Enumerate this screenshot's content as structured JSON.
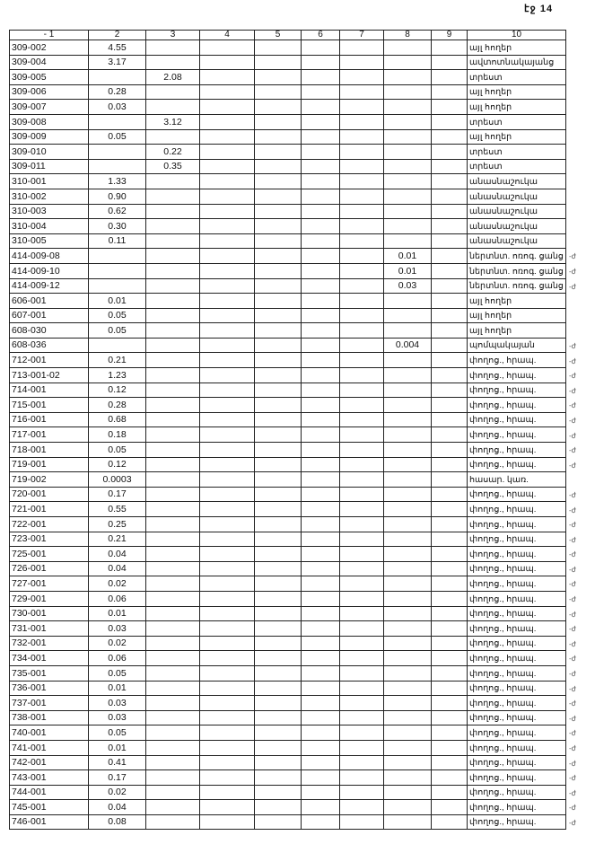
{
  "page_label": "էջ 14",
  "columns": [
    "-   1",
    "2",
    "3",
    "4",
    "5",
    "6",
    "7",
    "8",
    "9",
    "10"
  ],
  "rows": [
    {
      "c": [
        "309-002",
        "4.55",
        "",
        "",
        "",
        "",
        "",
        "",
        "",
        "այլ հողեր"
      ],
      "m": ""
    },
    {
      "c": [
        "309-004",
        "3.17",
        "",
        "",
        "",
        "",
        "",
        "",
        "",
        "ավտոտնակայանց"
      ],
      "m": ""
    },
    {
      "c": [
        "309-005",
        "",
        "2.08",
        "",
        "",
        "",
        "",
        "",
        "",
        "տրեստ"
      ],
      "m": ""
    },
    {
      "c": [
        "309-006",
        "0.28",
        "",
        "",
        "",
        "",
        "",
        "",
        "",
        "այլ հողեր"
      ],
      "m": ""
    },
    {
      "c": [
        "309-007",
        "0.03",
        "",
        "",
        "",
        "",
        "",
        "",
        "",
        "այլ հողեր"
      ],
      "m": ""
    },
    {
      "c": [
        "309-008",
        "",
        "3.12",
        "",
        "",
        "",
        "",
        "",
        "",
        "տրեստ"
      ],
      "m": ""
    },
    {
      "c": [
        "309-009",
        "0.05",
        "",
        "",
        "",
        "",
        "",
        "",
        "",
        "այլ հողեր"
      ],
      "m": ""
    },
    {
      "c": [
        "309-010",
        "",
        "0.22",
        "",
        "",
        "",
        "",
        "",
        "",
        "տրեստ"
      ],
      "m": ""
    },
    {
      "c": [
        "309-011",
        "",
        "0.35",
        "",
        "",
        "",
        "",
        "",
        "",
        "տրեստ"
      ],
      "m": ""
    },
    {
      "c": [
        "310-001",
        "1.33",
        "",
        "",
        "",
        "",
        "",
        "",
        "",
        "անասնաշուկա"
      ],
      "m": ""
    },
    {
      "c": [
        "310-002",
        "0.90",
        "",
        "",
        "",
        "",
        "",
        "",
        "",
        "անասնաշուկա"
      ],
      "m": ""
    },
    {
      "c": [
        "310-003",
        "0.62",
        "",
        "",
        "",
        "",
        "",
        "",
        "",
        "անասնաշուկա"
      ],
      "m": ""
    },
    {
      "c": [
        "310-004",
        "0.30",
        "",
        "",
        "",
        "",
        "",
        "",
        "",
        "անասնաշուկա"
      ],
      "m": ""
    },
    {
      "c": [
        "310-005",
        "0.11",
        "",
        "",
        "",
        "",
        "",
        "",
        "",
        "անասնաշուկա"
      ],
      "m": ""
    },
    {
      "c": [
        "414-009-08",
        "",
        "",
        "",
        "",
        "",
        "",
        "0.01",
        "",
        "ներտնտ. ոռոգ. ցանց"
      ],
      "m": "-ժ"
    },
    {
      "c": [
        "414-009-10",
        "",
        "",
        "",
        "",
        "",
        "",
        "0.01",
        "",
        "ներտնտ. ոռոգ. ցանց"
      ],
      "m": "-ժ"
    },
    {
      "c": [
        "414-009-12",
        "",
        "",
        "",
        "",
        "",
        "",
        "0.03",
        "",
        "ներտնտ. ոռոգ. ցանց"
      ],
      "m": "-ժ"
    },
    {
      "c": [
        "606-001",
        "0.01",
        "",
        "",
        "",
        "",
        "",
        "",
        "",
        "այլ հողեր"
      ],
      "m": ""
    },
    {
      "c": [
        "607-001",
        "0.05",
        "",
        "",
        "",
        "",
        "",
        "",
        "",
        "այլ հողեր"
      ],
      "m": ""
    },
    {
      "c": [
        "608-030",
        "0.05",
        "",
        "",
        "",
        "",
        "",
        "",
        "",
        "այլ հողեր"
      ],
      "m": ""
    },
    {
      "c": [
        "608-036",
        "",
        "",
        "",
        "",
        "",
        "",
        "0.004",
        "",
        "պոմպակայան"
      ],
      "m": "-ժ"
    },
    {
      "c": [
        "712-001",
        "0.21",
        "",
        "",
        "",
        "",
        "",
        "",
        "",
        "փողոց., հրապ."
      ],
      "m": "-ժ"
    },
    {
      "c": [
        "713-001-02",
        "1.23",
        "",
        "",
        "",
        "",
        "",
        "",
        "",
        "փողոց., հրապ."
      ],
      "m": "-ժ"
    },
    {
      "c": [
        "714-001",
        "0.12",
        "",
        "",
        "",
        "",
        "",
        "",
        "",
        "փողոց., հրապ."
      ],
      "m": "-ժ"
    },
    {
      "c": [
        "715-001",
        "0.28",
        "",
        "",
        "",
        "",
        "",
        "",
        "",
        "փողոց., հրապ."
      ],
      "m": "-ժ"
    },
    {
      "c": [
        "716-001",
        "0.68",
        "",
        "",
        "",
        "",
        "",
        "",
        "",
        "փողոց., հրապ."
      ],
      "m": "-ժ"
    },
    {
      "c": [
        "717-001",
        "0.18",
        "",
        "",
        "",
        "",
        "",
        "",
        "",
        "փողոց., հրապ."
      ],
      "m": "-ժ"
    },
    {
      "c": [
        "718-001",
        "0.05",
        "",
        "",
        "",
        "",
        "",
        "",
        "",
        "փողոց., հրապ."
      ],
      "m": "-ժ"
    },
    {
      "c": [
        "719-001",
        "0.12",
        "",
        "",
        "",
        "",
        "",
        "",
        "",
        "փողոց., հրապ."
      ],
      "m": "-ժ"
    },
    {
      "c": [
        "719-002",
        "0.0003",
        "",
        "",
        "",
        "",
        "",
        "",
        "",
        "հասար. կառ."
      ],
      "m": ""
    },
    {
      "c": [
        "720-001",
        "0.17",
        "",
        "",
        "",
        "",
        "",
        "",
        "",
        "փողոց., հրապ."
      ],
      "m": "-ժ"
    },
    {
      "c": [
        "721-001",
        "0.55",
        "",
        "",
        "",
        "",
        "",
        "",
        "",
        "փողոց., հրապ."
      ],
      "m": "-ժ"
    },
    {
      "c": [
        "722-001",
        "0.25",
        "",
        "",
        "",
        "",
        "",
        "",
        "",
        "փողոց., հրապ."
      ],
      "m": "-ժ"
    },
    {
      "c": [
        "723-001",
        "0.21",
        "",
        "",
        "",
        "",
        "",
        "",
        "",
        "փողոց., հրապ."
      ],
      "m": "-ժ"
    },
    {
      "c": [
        "725-001",
        "0.04",
        "",
        "",
        "",
        "",
        "",
        "",
        "",
        "փողոց., հրապ."
      ],
      "m": "-ժ"
    },
    {
      "c": [
        "726-001",
        "0.04",
        "",
        "",
        "",
        "",
        "",
        "",
        "",
        "փողոց., հրապ."
      ],
      "m": "-ժ"
    },
    {
      "c": [
        "727-001",
        "0.02",
        "",
        "",
        "",
        "",
        "",
        "",
        "",
        "փողոց., հրապ."
      ],
      "m": "-ժ"
    },
    {
      "c": [
        "729-001",
        "0.06",
        "",
        "",
        "",
        "",
        "",
        "",
        "",
        "փողոց., հրապ."
      ],
      "m": "-ժ"
    },
    {
      "c": [
        "730-001",
        "0.01",
        "",
        "",
        "",
        "",
        "",
        "",
        "",
        "փողոց., հրապ."
      ],
      "m": "-ժ"
    },
    {
      "c": [
        "731-001",
        "0.03",
        "",
        "",
        "",
        "",
        "",
        "",
        "",
        "փողոց., հրապ."
      ],
      "m": "-ժ"
    },
    {
      "c": [
        "732-001",
        "0.02",
        "",
        "",
        "",
        "",
        "",
        "",
        "",
        "փողոց., հրապ."
      ],
      "m": "-ժ"
    },
    {
      "c": [
        "734-001",
        "0.06",
        "",
        "",
        "",
        "",
        "",
        "",
        "",
        "փողոց., հրապ."
      ],
      "m": "-ժ"
    },
    {
      "c": [
        "735-001",
        "0.05",
        "",
        "",
        "",
        "",
        "",
        "",
        "",
        "փողոց., հրապ."
      ],
      "m": "-ժ"
    },
    {
      "c": [
        "736-001",
        "0.01",
        "",
        "",
        "",
        "",
        "",
        "",
        "",
        "փողոց., հրապ."
      ],
      "m": "-ժ"
    },
    {
      "c": [
        "737-001",
        "0.03",
        "",
        "",
        "",
        "",
        "",
        "",
        "",
        "փողոց., հրապ."
      ],
      "m": "-ժ"
    },
    {
      "c": [
        "738-001",
        "0.03",
        "",
        "",
        "",
        "",
        "",
        "",
        "",
        "փողոց., հրապ."
      ],
      "m": "-ժ"
    },
    {
      "c": [
        "740-001",
        "0.05",
        "",
        "",
        "",
        "",
        "",
        "",
        "",
        "փողոց., հրապ."
      ],
      "m": "-ժ"
    },
    {
      "c": [
        "741-001",
        "0.01",
        "",
        "",
        "",
        "",
        "",
        "",
        "",
        "փողոց., հրապ."
      ],
      "m": "-ժ"
    },
    {
      "c": [
        "742-001",
        "0.41",
        "",
        "",
        "",
        "",
        "",
        "",
        "",
        "փողոց., հրապ."
      ],
      "m": "-ժ"
    },
    {
      "c": [
        "743-001",
        "0.17",
        "",
        "",
        "",
        "",
        "",
        "",
        "",
        "փողոց., հրապ."
      ],
      "m": "-ժ"
    },
    {
      "c": [
        "744-001",
        "0.02",
        "",
        "",
        "",
        "",
        "",
        "",
        "",
        "փողոց., հրապ."
      ],
      "m": "-ժ"
    },
    {
      "c": [
        "745-001",
        "0.04",
        "",
        "",
        "",
        "",
        "",
        "",
        "",
        "փողոց., հրապ."
      ],
      "m": "-ժ"
    },
    {
      "c": [
        "746-001",
        "0.08",
        "",
        "",
        "",
        "",
        "",
        "",
        "",
        "փողոց., հրապ."
      ],
      "m": "-ժ"
    }
  ]
}
